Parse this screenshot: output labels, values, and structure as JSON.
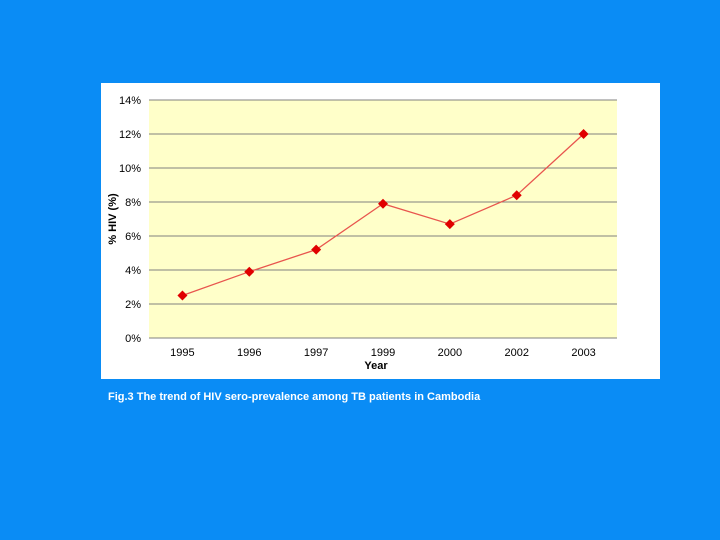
{
  "chart_data": {
    "type": "line",
    "categories": [
      "1995",
      "1996",
      "1997",
      "1999",
      "2000",
      "2002",
      "2003"
    ],
    "series": [
      {
        "values": [
          2.5,
          3.9,
          5.2,
          7.9,
          6.7,
          8.4,
          12.0
        ]
      }
    ],
    "xlabel": "Year",
    "ylabel": "% HIV (%)",
    "ylim": [
      0,
      14
    ],
    "yticks": [
      "0%",
      "2%",
      "4%",
      "6%",
      "8%",
      "10%",
      "12%",
      "14%"
    ],
    "grid": true,
    "legend": "none",
    "colors": {
      "plot_background": "#ffffc9",
      "line": "#e8554e",
      "marker": "#e00000",
      "grid": "#808080"
    }
  },
  "caption": "Fig.3 The trend of HIV sero-prevalence among TB patients in Cambodia",
  "colors": {
    "slide_background": "#0a8cf5",
    "caption_text": "#ffffff"
  }
}
